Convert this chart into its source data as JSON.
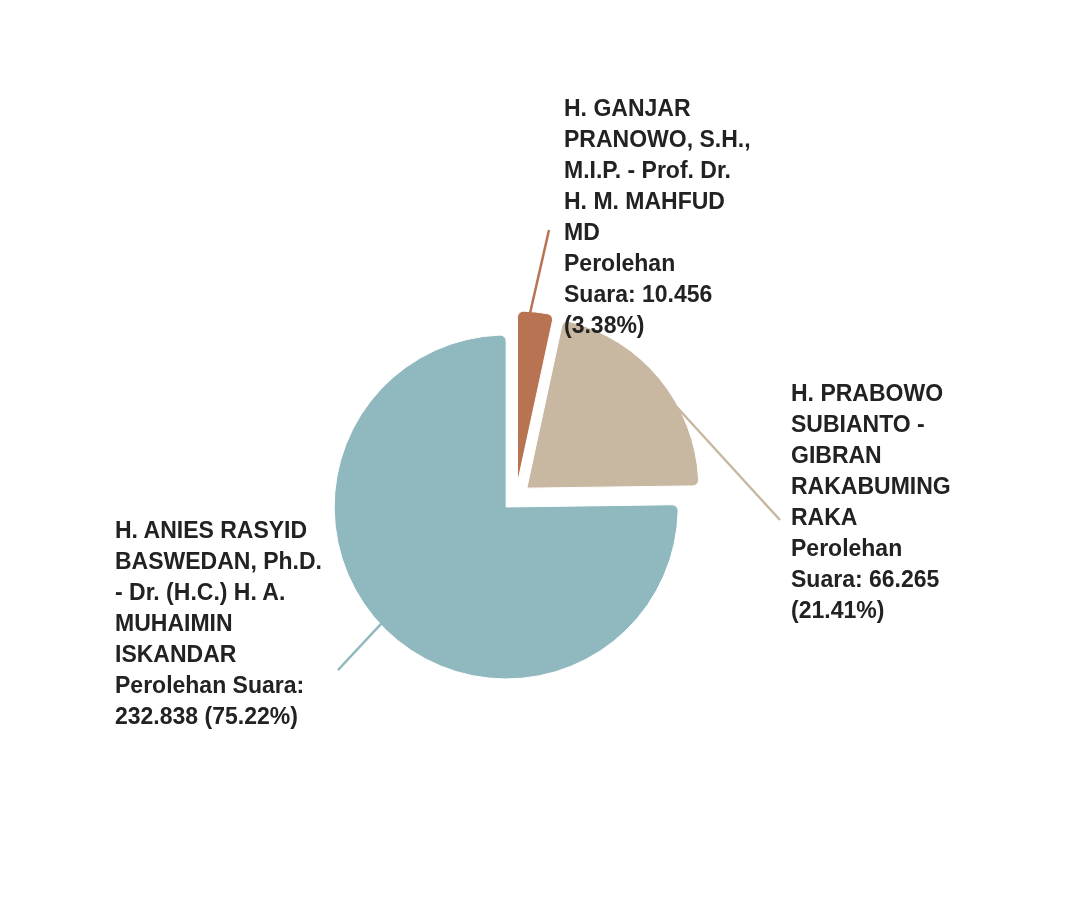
{
  "chart_data": {
    "type": "pie",
    "categories": [
      "H. GANJAR PRANOWO, S.H., M.I.P. - Prof. Dr. H. M. MAHFUD MD",
      "H. PRABOWO SUBIANTO - GIBRAN RAKABUMING RAKA",
      "H. ANIES RASYID BASWEDAN, Ph.D. - Dr. (H.C.) H. A. MUHAIMIN ISKANDAR"
    ],
    "values": [
      3.38,
      21.41,
      75.22
    ],
    "value_labels": [
      "Perolehan Suara: 10.456 (3.38%)",
      "Perolehan Suara: 66.265 (21.41%)",
      "Perolehan Suara: 232.838 (75.22%)"
    ],
    "colors": [
      "#b87352",
      "#c8b8a2",
      "#8fb9be"
    ]
  }
}
